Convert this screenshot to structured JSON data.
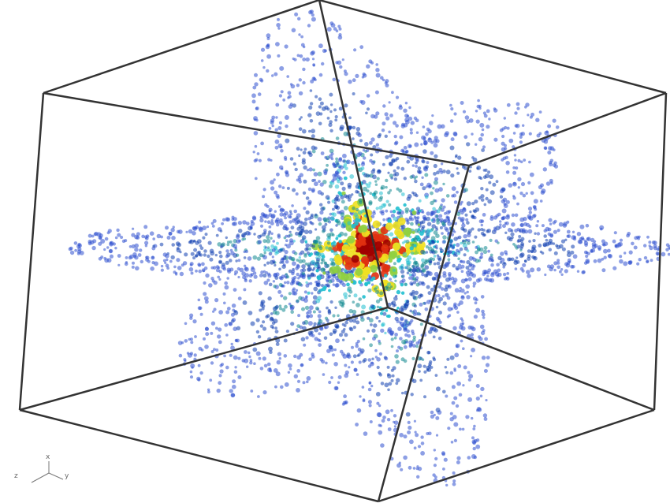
{
  "axes_triad": {
    "labels": [
      "z",
      "x",
      "y"
    ]
  }
}
